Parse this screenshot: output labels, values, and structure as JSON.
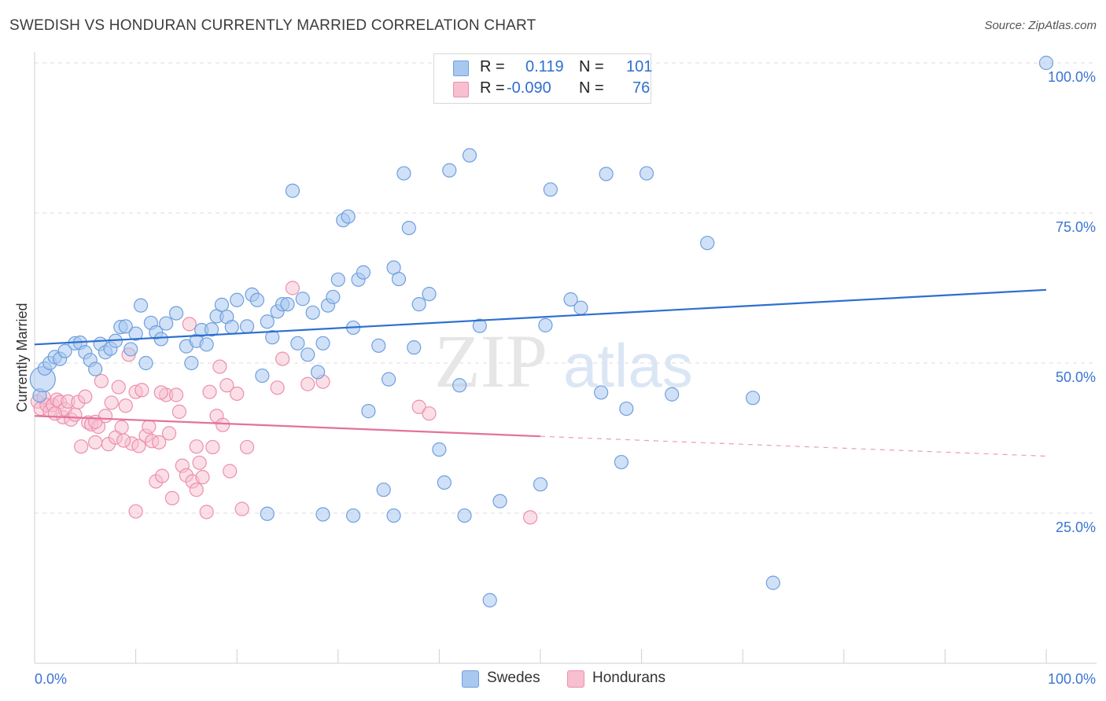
{
  "title": "SWEDISH VS HONDURAN CURRENTLY MARRIED CORRELATION CHART",
  "source": "Source: ZipAtlas.com",
  "watermark": {
    "zip": "ZIP",
    "atlas": "atlas"
  },
  "legend": {
    "r_label": "R =",
    "n_label": "N =",
    "swedes": {
      "r": "0.119",
      "n": "101"
    },
    "hondurans": {
      "r": "-0.090",
      "n": "76"
    }
  },
  "colors": {
    "swedes_fill": "#a9c8f0",
    "swedes_stroke": "#6f9fde",
    "swedes_line": "#2d6fd0",
    "hondurans_fill": "#f7bfd0",
    "hondurans_stroke": "#ec8fae",
    "hondurans_line": "#e3729a",
    "grid": "#dddddd",
    "tick_text": "#3b74d1"
  },
  "chart_data": {
    "type": "scatter",
    "title": "SWEDISH VS HONDURAN CURRENTLY MARRIED CORRELATION CHART",
    "xlabel": "",
    "ylabel": "Currently Married",
    "xlim": [
      0,
      100
    ],
    "ylim": [
      0,
      100
    ],
    "x_tick_labels": [
      "0.0%",
      "100.0%"
    ],
    "y_ticks": [
      25,
      50,
      75,
      100
    ],
    "y_tick_labels": [
      "25.0%",
      "50.0%",
      "75.0%",
      "100.0%"
    ],
    "legend_labels": [
      "Swedes",
      "Hondurans"
    ],
    "series": [
      {
        "name": "Swedes",
        "r": 0.119,
        "n": 101,
        "trend": {
          "x": [
            0,
            100
          ],
          "y": [
            53.1,
            62.2
          ]
        },
        "points": [
          [
            0.5,
            44.6
          ],
          [
            0.8,
            47.3
          ],
          [
            1.0,
            49.1
          ],
          [
            1.5,
            50.0
          ],
          [
            2.0,
            51.0
          ],
          [
            2.5,
            50.7
          ],
          [
            3.0,
            52.0
          ],
          [
            4.0,
            53.3
          ],
          [
            4.5,
            53.4
          ],
          [
            5.0,
            51.8
          ],
          [
            5.5,
            50.5
          ],
          [
            6.0,
            49.0
          ],
          [
            6.5,
            53.2
          ],
          [
            7.0,
            51.8
          ],
          [
            7.5,
            52.4
          ],
          [
            8.0,
            53.7
          ],
          [
            8.5,
            56.0
          ],
          [
            9.0,
            56.1
          ],
          [
            9.5,
            52.3
          ],
          [
            10.0,
            54.9
          ],
          [
            10.5,
            59.6
          ],
          [
            11.0,
            50.0
          ],
          [
            11.5,
            56.7
          ],
          [
            12.0,
            55.1
          ],
          [
            12.5,
            54.0
          ],
          [
            13.0,
            56.6
          ],
          [
            14.0,
            58.3
          ],
          [
            15.0,
            52.8
          ],
          [
            15.5,
            50.0
          ],
          [
            16.0,
            53.7
          ],
          [
            16.5,
            55.5
          ],
          [
            17.0,
            53.1
          ],
          [
            17.5,
            55.6
          ],
          [
            18.0,
            57.8
          ],
          [
            18.5,
            59.7
          ],
          [
            19.0,
            57.7
          ],
          [
            19.5,
            56.0
          ],
          [
            20.0,
            60.5
          ],
          [
            21.0,
            56.1
          ],
          [
            21.5,
            61.4
          ],
          [
            22.0,
            60.5
          ],
          [
            22.5,
            47.9
          ],
          [
            23.0,
            56.9
          ],
          [
            23.5,
            54.3
          ],
          [
            24.0,
            58.6
          ],
          [
            24.5,
            59.8
          ],
          [
            25.0,
            59.8
          ],
          [
            25.5,
            78.7
          ],
          [
            26.0,
            53.3
          ],
          [
            26.5,
            60.7
          ],
          [
            27.0,
            51.4
          ],
          [
            27.5,
            58.4
          ],
          [
            28.0,
            48.5
          ],
          [
            28.5,
            53.3
          ],
          [
            29.0,
            59.6
          ],
          [
            29.5,
            61.0
          ],
          [
            30.0,
            63.9
          ],
          [
            30.5,
            73.8
          ],
          [
            31.0,
            74.4
          ],
          [
            31.5,
            55.9
          ],
          [
            32.0,
            63.9
          ],
          [
            32.5,
            65.1
          ],
          [
            33.0,
            42.0
          ],
          [
            34.0,
            52.9
          ],
          [
            34.5,
            28.9
          ],
          [
            35.0,
            47.3
          ],
          [
            35.5,
            65.9
          ],
          [
            36.0,
            64.0
          ],
          [
            36.5,
            81.6
          ],
          [
            37.0,
            72.5
          ],
          [
            37.5,
            52.6
          ],
          [
            38.0,
            59.8
          ],
          [
            39.0,
            61.5
          ],
          [
            40.0,
            35.6
          ],
          [
            40.5,
            30.1
          ],
          [
            41.0,
            82.1
          ],
          [
            42.0,
            46.3
          ],
          [
            43.0,
            84.6
          ],
          [
            44.0,
            56.2
          ],
          [
            45.0,
            10.5
          ],
          [
            50.0,
            29.8
          ],
          [
            50.5,
            56.3
          ],
          [
            51.0,
            78.9
          ],
          [
            53.0,
            60.6
          ],
          [
            54.0,
            59.2
          ],
          [
            56.0,
            45.1
          ],
          [
            56.5,
            81.5
          ],
          [
            58.0,
            33.5
          ],
          [
            58.5,
            42.4
          ],
          [
            60.5,
            81.6
          ],
          [
            63.0,
            44.8
          ],
          [
            66.5,
            70.0
          ],
          [
            71.0,
            44.2
          ],
          [
            73.0,
            13.4
          ],
          [
            100.0,
            100.0
          ],
          [
            31.5,
            24.6
          ],
          [
            42.5,
            24.6
          ],
          [
            28.5,
            24.8
          ],
          [
            35.5,
            24.6
          ],
          [
            23.0,
            24.9
          ],
          [
            46.0,
            27.0
          ]
        ]
      },
      {
        "name": "Hondurans",
        "r": -0.09,
        "n": 76,
        "trend": {
          "x": [
            0,
            50
          ],
          "y": [
            41.2,
            37.8
          ]
        },
        "trend_dashed": {
          "x": [
            50,
            100
          ],
          "y": [
            37.8,
            34.5
          ]
        },
        "points": [
          [
            0.3,
            43.6
          ],
          [
            0.6,
            42.4
          ],
          [
            0.9,
            44.3
          ],
          [
            1.2,
            43.0
          ],
          [
            1.5,
            42.1
          ],
          [
            1.8,
            43.0
          ],
          [
            2.2,
            43.9
          ],
          [
            2.5,
            43.5
          ],
          [
            2.8,
            41.0
          ],
          [
            3.0,
            42.3
          ],
          [
            3.3,
            43.6
          ],
          [
            3.6,
            40.6
          ],
          [
            4.0,
            41.4
          ],
          [
            4.3,
            43.5
          ],
          [
            4.6,
            36.1
          ],
          [
            5.0,
            44.4
          ],
          [
            5.3,
            40.1
          ],
          [
            5.6,
            39.8
          ],
          [
            6.0,
            36.8
          ],
          [
            6.3,
            39.4
          ],
          [
            6.6,
            47.0
          ],
          [
            7.0,
            41.2
          ],
          [
            7.3,
            36.5
          ],
          [
            7.6,
            43.4
          ],
          [
            8.0,
            37.6
          ],
          [
            8.3,
            46.0
          ],
          [
            8.6,
            39.3
          ],
          [
            9.0,
            42.9
          ],
          [
            9.3,
            51.4
          ],
          [
            9.6,
            36.6
          ],
          [
            10.0,
            45.2
          ],
          [
            10.3,
            36.2
          ],
          [
            10.6,
            45.5
          ],
          [
            11.0,
            37.9
          ],
          [
            11.3,
            39.4
          ],
          [
            11.6,
            37.0
          ],
          [
            12.0,
            30.3
          ],
          [
            12.3,
            36.8
          ],
          [
            12.6,
            31.2
          ],
          [
            13.0,
            44.7
          ],
          [
            13.3,
            38.3
          ],
          [
            13.6,
            27.5
          ],
          [
            14.0,
            44.7
          ],
          [
            14.3,
            41.9
          ],
          [
            14.6,
            32.9
          ],
          [
            15.0,
            31.3
          ],
          [
            15.3,
            56.5
          ],
          [
            15.6,
            30.3
          ],
          [
            16.0,
            28.9
          ],
          [
            16.3,
            33.4
          ],
          [
            16.6,
            31.0
          ],
          [
            17.0,
            25.2
          ],
          [
            17.3,
            45.2
          ],
          [
            17.6,
            36.0
          ],
          [
            18.0,
            41.2
          ],
          [
            18.3,
            49.4
          ],
          [
            18.6,
            39.7
          ],
          [
            19.0,
            46.3
          ],
          [
            19.3,
            32.0
          ],
          [
            20.0,
            44.9
          ],
          [
            20.5,
            25.7
          ],
          [
            21.0,
            36.0
          ],
          [
            24.0,
            45.9
          ],
          [
            24.5,
            50.7
          ],
          [
            25.5,
            62.5
          ],
          [
            27.0,
            46.5
          ],
          [
            28.5,
            46.9
          ],
          [
            38.0,
            42.7
          ],
          [
            39.0,
            41.6
          ],
          [
            49.0,
            24.3
          ],
          [
            10.0,
            25.3
          ],
          [
            16.0,
            36.1
          ],
          [
            12.5,
            45.1
          ],
          [
            6.0,
            40.2
          ],
          [
            8.8,
            37.1
          ],
          [
            2.0,
            41.6
          ]
        ]
      }
    ]
  }
}
